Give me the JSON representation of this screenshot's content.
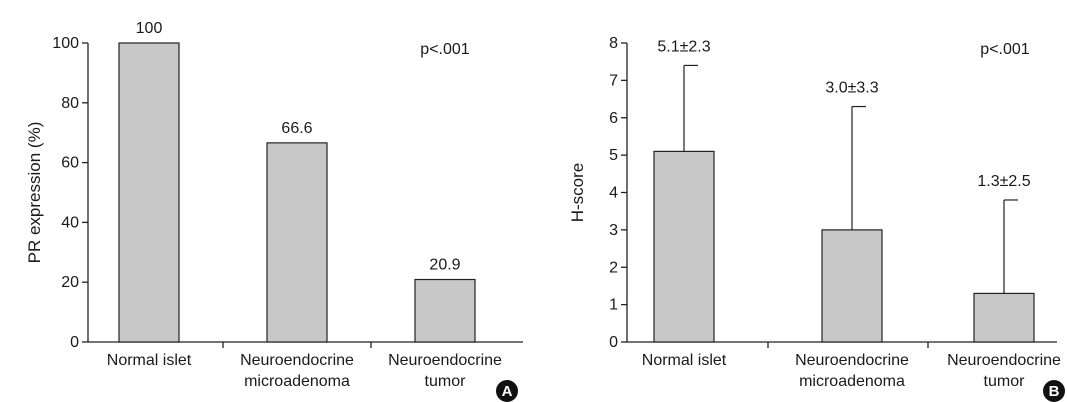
{
  "chart_data": [
    {
      "type": "bar",
      "panel_label": "A",
      "categories": [
        [
          "Normal islet"
        ],
        [
          "Neuroendocrine",
          "microadenoma"
        ],
        [
          "Neuroendocrine",
          "tumor"
        ]
      ],
      "values": [
        100,
        66.6,
        20.9
      ],
      "value_labels": [
        "100",
        "66.6",
        "20.9"
      ],
      "ylabel": "PR expression (%)",
      "ylim": [
        0,
        100
      ],
      "yticks": [
        0,
        20,
        40,
        60,
        80,
        100
      ],
      "annotation": "p<.001",
      "bar_color": "#c8c8c8",
      "grid": false
    },
    {
      "type": "bar",
      "panel_label": "B",
      "categories": [
        [
          "Normal islet"
        ],
        [
          "Neuroendocrine",
          "microadenoma"
        ],
        [
          "Neuroendocrine",
          "tumor"
        ]
      ],
      "values": [
        5.1,
        3.0,
        1.3
      ],
      "errors": [
        2.3,
        3.3,
        2.5
      ],
      "value_labels": [
        "5.1±2.3",
        "3.0±3.3",
        "1.3±2.5"
      ],
      "ylabel": "H-score",
      "ylim": [
        0,
        8
      ],
      "yticks": [
        0,
        1,
        2,
        3,
        4,
        5,
        6,
        7,
        8
      ],
      "annotation": "p<.001",
      "bar_color": "#c8c8c8",
      "grid": false
    }
  ]
}
